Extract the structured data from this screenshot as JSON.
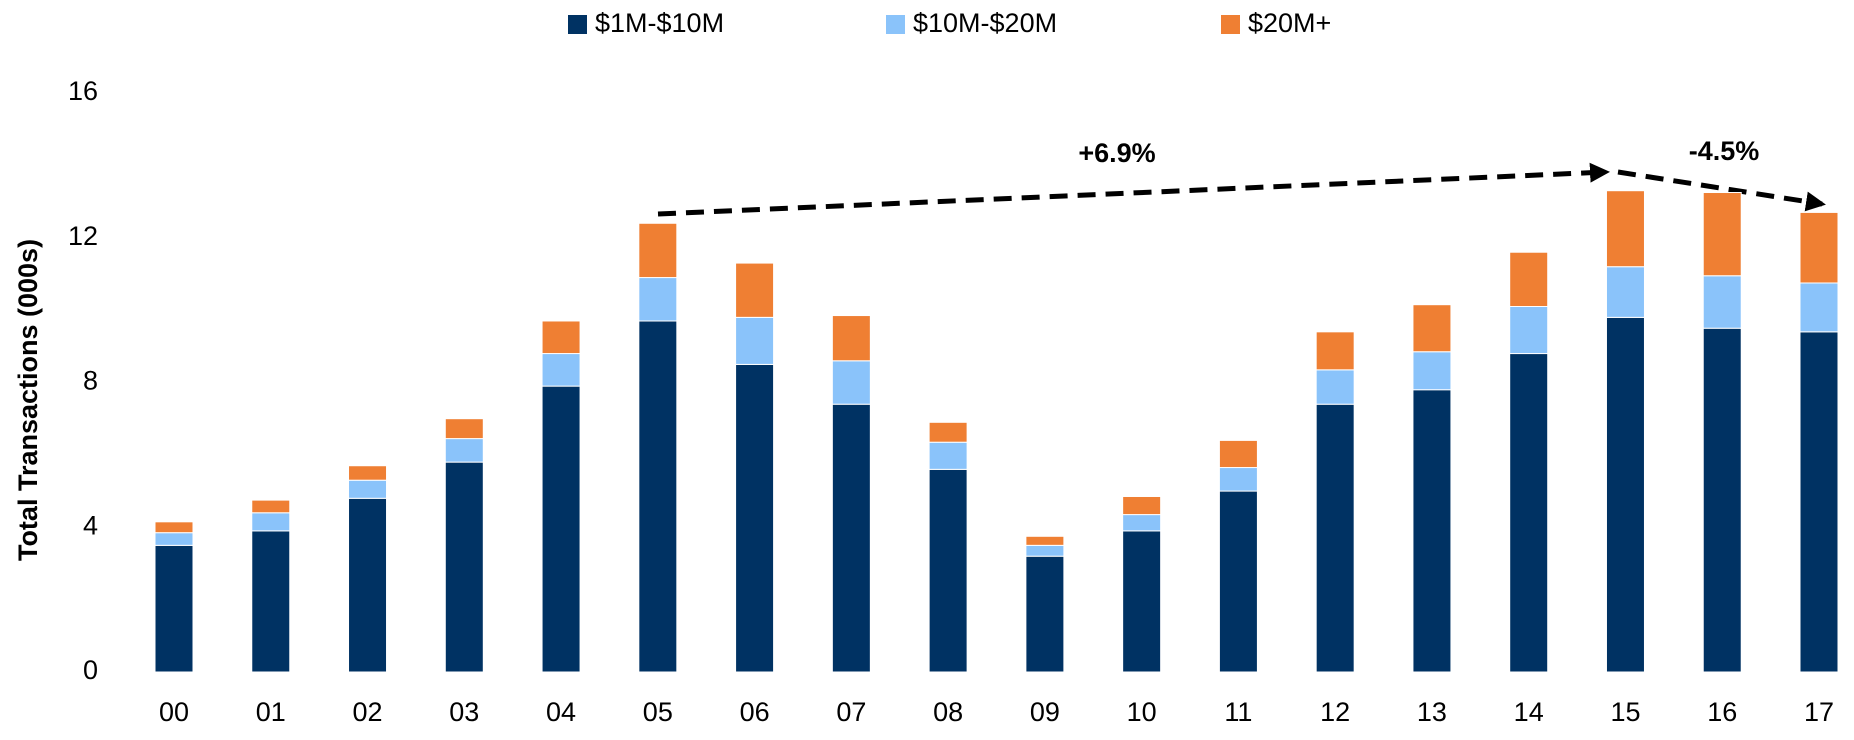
{
  "chart_data": {
    "type": "stacked_bar",
    "y_axis_label": "Total Transactions (000s)",
    "categories": [
      "00",
      "01",
      "02",
      "03",
      "04",
      "05",
      "06",
      "07",
      "08",
      "09",
      "10",
      "11",
      "12",
      "13",
      "14",
      "15",
      "16",
      "17"
    ],
    "series": [
      {
        "name": "$1M-$10M",
        "color": "#003263",
        "values": [
          3.5,
          3.9,
          4.8,
          5.8,
          7.9,
          9.7,
          8.5,
          7.4,
          5.6,
          3.2,
          3.9,
          5.0,
          7.4,
          7.8,
          8.8,
          9.8,
          9.5,
          9.4
        ]
      },
      {
        "name": "$10M-$20M",
        "color": "#8ac3fa",
        "values": [
          0.35,
          0.5,
          0.5,
          0.65,
          0.9,
          1.2,
          1.3,
          1.2,
          0.75,
          0.3,
          0.45,
          0.65,
          0.95,
          1.05,
          1.3,
          1.4,
          1.45,
          1.35
        ]
      },
      {
        "name": "$20M+",
        "color": "#ef7f33",
        "values": [
          0.3,
          0.35,
          0.4,
          0.55,
          0.9,
          1.5,
          1.5,
          1.25,
          0.55,
          0.25,
          0.5,
          0.75,
          1.05,
          1.3,
          1.5,
          2.1,
          2.3,
          1.95
        ]
      }
    ],
    "ylim": [
      0,
      16
    ],
    "yticks": [
      0,
      4,
      8,
      12,
      16
    ],
    "grid": false,
    "legend": "top",
    "annotations": [
      {
        "text": "+6.9%"
      },
      {
        "text": "-4.5%"
      }
    ]
  }
}
